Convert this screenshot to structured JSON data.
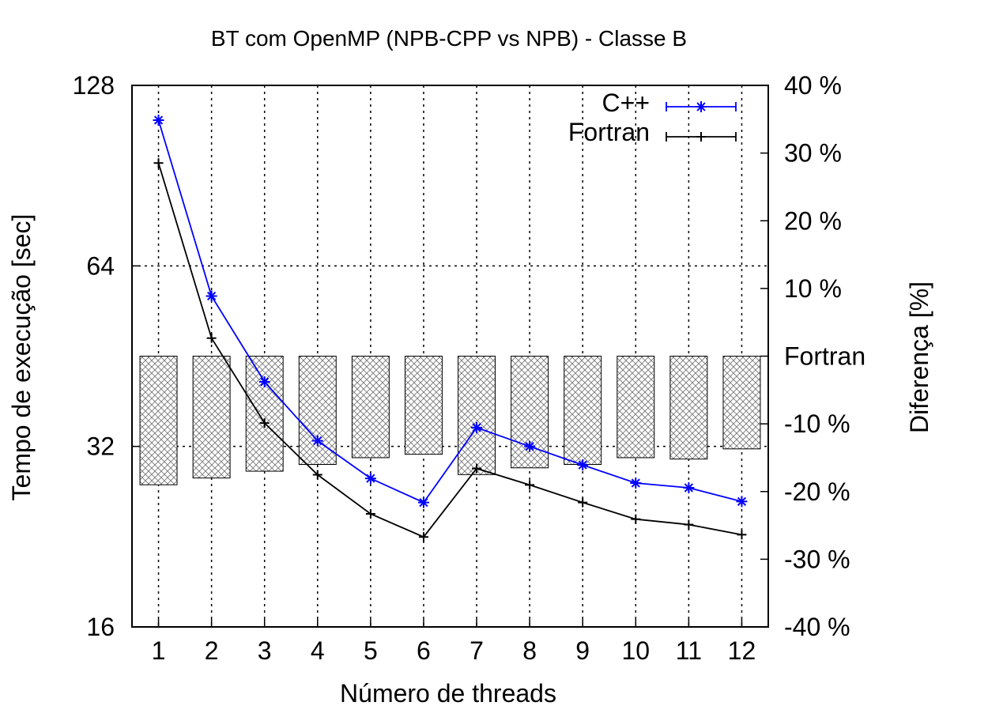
{
  "chart_data": {
    "type": "line",
    "title": "BT com OpenMP (NPB-CPP vs NPB) - Classe B",
    "xlabel": "Número de threads",
    "ylabel": "Tempo de execução [sec]",
    "y2label": "Diferença [%]",
    "x": [
      1,
      2,
      3,
      4,
      5,
      6,
      7,
      8,
      9,
      10,
      11,
      12
    ],
    "x_ticks": [
      "1",
      "2",
      "3",
      "4",
      "5",
      "6",
      "7",
      "8",
      "9",
      "10",
      "11",
      "12"
    ],
    "y_scale": "log2",
    "ylim": [
      16,
      128
    ],
    "y_ticks": [
      "16",
      "32",
      "64",
      "128"
    ],
    "y2lim": [
      -40,
      40
    ],
    "y2_ticks": [
      "-40 %",
      "-30 %",
      "-20 %",
      "-10 %",
      "Fortran",
      "10 %",
      "20 %",
      "30 %",
      "40 %"
    ],
    "grid": true,
    "legend_position": "top-right",
    "series": [
      {
        "name": "C++",
        "axis": "left",
        "color": "#0000ff",
        "marker": "asterisk",
        "values": [
          112,
          57,
          41,
          32.7,
          28.3,
          25.8,
          34.4,
          32,
          29.8,
          27.8,
          27.3,
          25.9
        ]
      },
      {
        "name": "Fortran",
        "axis": "left",
        "color": "#000000",
        "marker": "plus",
        "values": [
          95,
          48.5,
          35,
          28.7,
          24.7,
          22.6,
          29.4,
          27.6,
          25.8,
          24.2,
          23.7,
          22.8
        ]
      }
    ],
    "bars": {
      "axis": "right",
      "pattern": "crosshatch",
      "values": [
        -19,
        -18,
        -17,
        -16,
        -15,
        -14.5,
        -17.5,
        -16.5,
        -16,
        -15,
        -15.2,
        -13.7
      ]
    }
  }
}
